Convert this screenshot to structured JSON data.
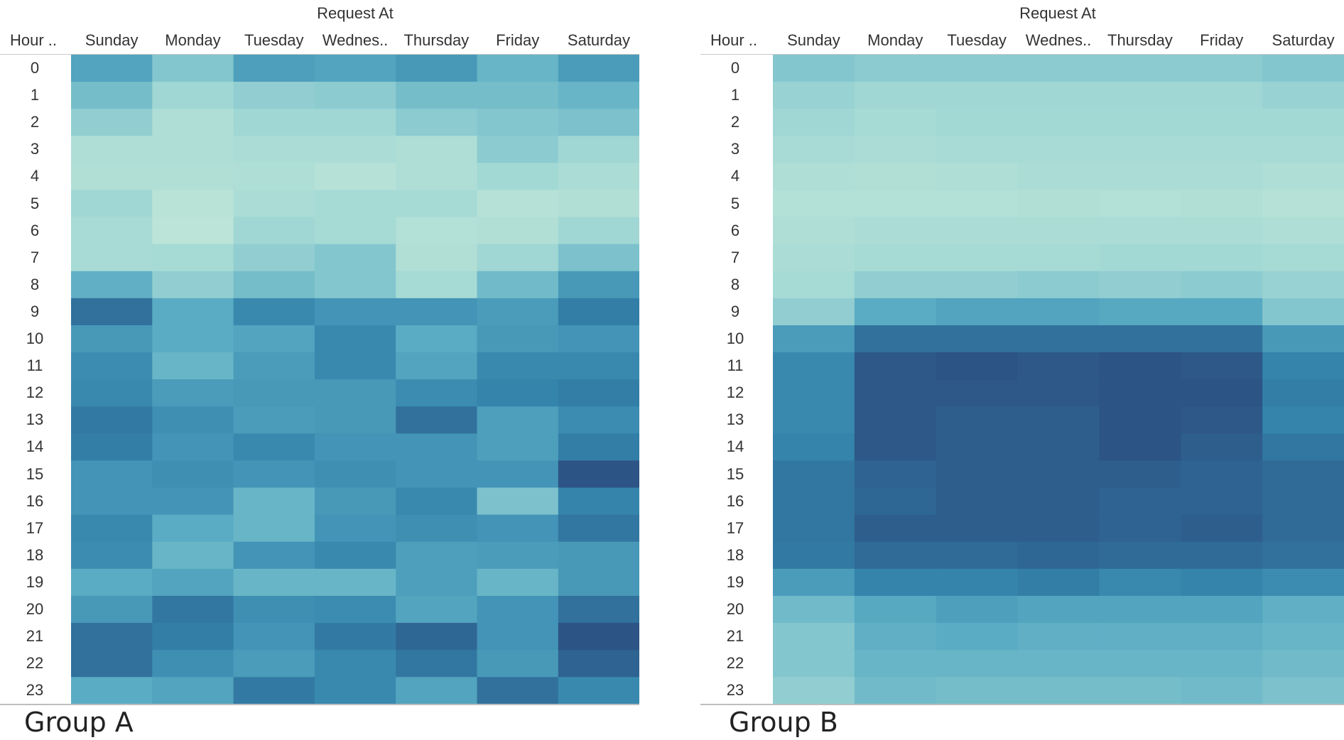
{
  "chart_data": [
    {
      "type": "heatmap",
      "column_title": "Request At",
      "row_header": "Hour ..",
      "group_label": "Group A",
      "columns": [
        "Sunday",
        "Monday",
        "Tuesday",
        "Wednes..",
        "Thursday",
        "Friday",
        "Saturday"
      ],
      "rows": [
        "0",
        "1",
        "2",
        "3",
        "4",
        "5",
        "6",
        "7",
        "8",
        "9",
        "10",
        "11",
        "12",
        "13",
        "14",
        "15",
        "16",
        "17",
        "18",
        "19",
        "20",
        "21",
        "22",
        "23"
      ],
      "value_range": [
        0,
        1
      ],
      "values": [
        [
          0.55,
          0.35,
          0.58,
          0.55,
          0.62,
          0.45,
          0.6
        ],
        [
          0.4,
          0.25,
          0.3,
          0.32,
          0.4,
          0.4,
          0.45
        ],
        [
          0.3,
          0.12,
          0.25,
          0.25,
          0.32,
          0.35,
          0.38
        ],
        [
          0.12,
          0.12,
          0.15,
          0.15,
          0.12,
          0.32,
          0.25
        ],
        [
          0.1,
          0.1,
          0.12,
          0.05,
          0.12,
          0.22,
          0.15
        ],
        [
          0.25,
          0.02,
          0.15,
          0.2,
          0.2,
          0.05,
          0.1
        ],
        [
          0.18,
          0.0,
          0.25,
          0.2,
          0.08,
          0.1,
          0.25
        ],
        [
          0.18,
          0.2,
          0.3,
          0.35,
          0.1,
          0.25,
          0.38
        ],
        [
          0.48,
          0.3,
          0.4,
          0.35,
          0.2,
          0.42,
          0.62
        ],
        [
          0.85,
          0.5,
          0.72,
          0.65,
          0.65,
          0.6,
          0.78
        ],
        [
          0.62,
          0.5,
          0.55,
          0.72,
          0.5,
          0.62,
          0.65
        ],
        [
          0.7,
          0.45,
          0.6,
          0.72,
          0.55,
          0.72,
          0.72
        ],
        [
          0.72,
          0.6,
          0.62,
          0.62,
          0.7,
          0.75,
          0.78
        ],
        [
          0.8,
          0.68,
          0.6,
          0.62,
          0.85,
          0.58,
          0.7
        ],
        [
          0.78,
          0.65,
          0.72,
          0.65,
          0.65,
          0.58,
          0.78
        ],
        [
          0.65,
          0.68,
          0.65,
          0.68,
          0.65,
          0.65,
          1.0
        ],
        [
          0.65,
          0.65,
          0.45,
          0.62,
          0.72,
          0.38,
          0.75
        ],
        [
          0.72,
          0.5,
          0.45,
          0.65,
          0.68,
          0.65,
          0.82
        ],
        [
          0.7,
          0.45,
          0.65,
          0.72,
          0.58,
          0.6,
          0.62
        ],
        [
          0.5,
          0.55,
          0.45,
          0.45,
          0.58,
          0.45,
          0.62
        ],
        [
          0.62,
          0.82,
          0.68,
          0.7,
          0.55,
          0.65,
          0.85
        ],
        [
          0.85,
          0.78,
          0.65,
          0.8,
          0.9,
          0.65,
          1.05
        ],
        [
          0.85,
          0.68,
          0.6,
          0.72,
          0.82,
          0.62,
          0.92
        ],
        [
          0.5,
          0.55,
          0.8,
          0.72,
          0.55,
          0.85,
          0.72
        ]
      ]
    },
    {
      "type": "heatmap",
      "column_title": "Request At",
      "row_header": "Hour ..",
      "group_label": "Group B",
      "columns": [
        "Sunday",
        "Monday",
        "Tuesday",
        "Wednes..",
        "Thursday",
        "Friday",
        "Saturday"
      ],
      "rows": [
        "0",
        "1",
        "2",
        "3",
        "4",
        "5",
        "6",
        "7",
        "8",
        "9",
        "10",
        "11",
        "12",
        "13",
        "14",
        "15",
        "16",
        "17",
        "18",
        "19",
        "20",
        "21",
        "22",
        "23"
      ],
      "value_range": [
        0,
        1
      ],
      "values": [
        [
          0.35,
          0.32,
          0.32,
          0.32,
          0.32,
          0.32,
          0.35
        ],
        [
          0.28,
          0.25,
          0.25,
          0.25,
          0.25,
          0.25,
          0.28
        ],
        [
          0.25,
          0.2,
          0.22,
          0.22,
          0.22,
          0.22,
          0.22
        ],
        [
          0.18,
          0.15,
          0.18,
          0.18,
          0.18,
          0.18,
          0.18
        ],
        [
          0.12,
          0.1,
          0.12,
          0.15,
          0.15,
          0.15,
          0.12
        ],
        [
          0.08,
          0.08,
          0.08,
          0.1,
          0.08,
          0.1,
          0.05
        ],
        [
          0.12,
          0.15,
          0.15,
          0.15,
          0.15,
          0.15,
          0.12
        ],
        [
          0.15,
          0.2,
          0.2,
          0.2,
          0.22,
          0.22,
          0.2
        ],
        [
          0.2,
          0.3,
          0.3,
          0.32,
          0.3,
          0.32,
          0.28
        ],
        [
          0.3,
          0.5,
          0.55,
          0.55,
          0.52,
          0.52,
          0.35
        ],
        [
          0.6,
          0.85,
          0.85,
          0.85,
          0.85,
          0.85,
          0.62
        ],
        [
          0.72,
          0.98,
          1.0,
          0.98,
          1.0,
          0.98,
          0.75
        ],
        [
          0.72,
          0.98,
          0.98,
          0.98,
          1.0,
          1.0,
          0.78
        ],
        [
          0.72,
          0.98,
          0.95,
          0.95,
          1.0,
          0.98,
          0.75
        ],
        [
          0.75,
          0.98,
          0.95,
          0.95,
          1.0,
          0.95,
          0.82
        ],
        [
          0.82,
          0.92,
          0.95,
          0.95,
          0.95,
          0.92,
          0.88
        ],
        [
          0.82,
          0.9,
          0.95,
          0.95,
          0.92,
          0.92,
          0.88
        ],
        [
          0.82,
          0.95,
          0.95,
          0.95,
          0.92,
          0.95,
          0.88
        ],
        [
          0.8,
          0.88,
          0.88,
          0.9,
          0.88,
          0.88,
          0.85
        ],
        [
          0.6,
          0.75,
          0.75,
          0.78,
          0.72,
          0.75,
          0.7
        ],
        [
          0.42,
          0.52,
          0.58,
          0.55,
          0.55,
          0.55,
          0.48
        ],
        [
          0.35,
          0.48,
          0.5,
          0.48,
          0.48,
          0.48,
          0.45
        ],
        [
          0.35,
          0.45,
          0.45,
          0.45,
          0.45,
          0.45,
          0.42
        ],
        [
          0.3,
          0.42,
          0.4,
          0.4,
          0.4,
          0.42,
          0.38
        ]
      ]
    }
  ]
}
